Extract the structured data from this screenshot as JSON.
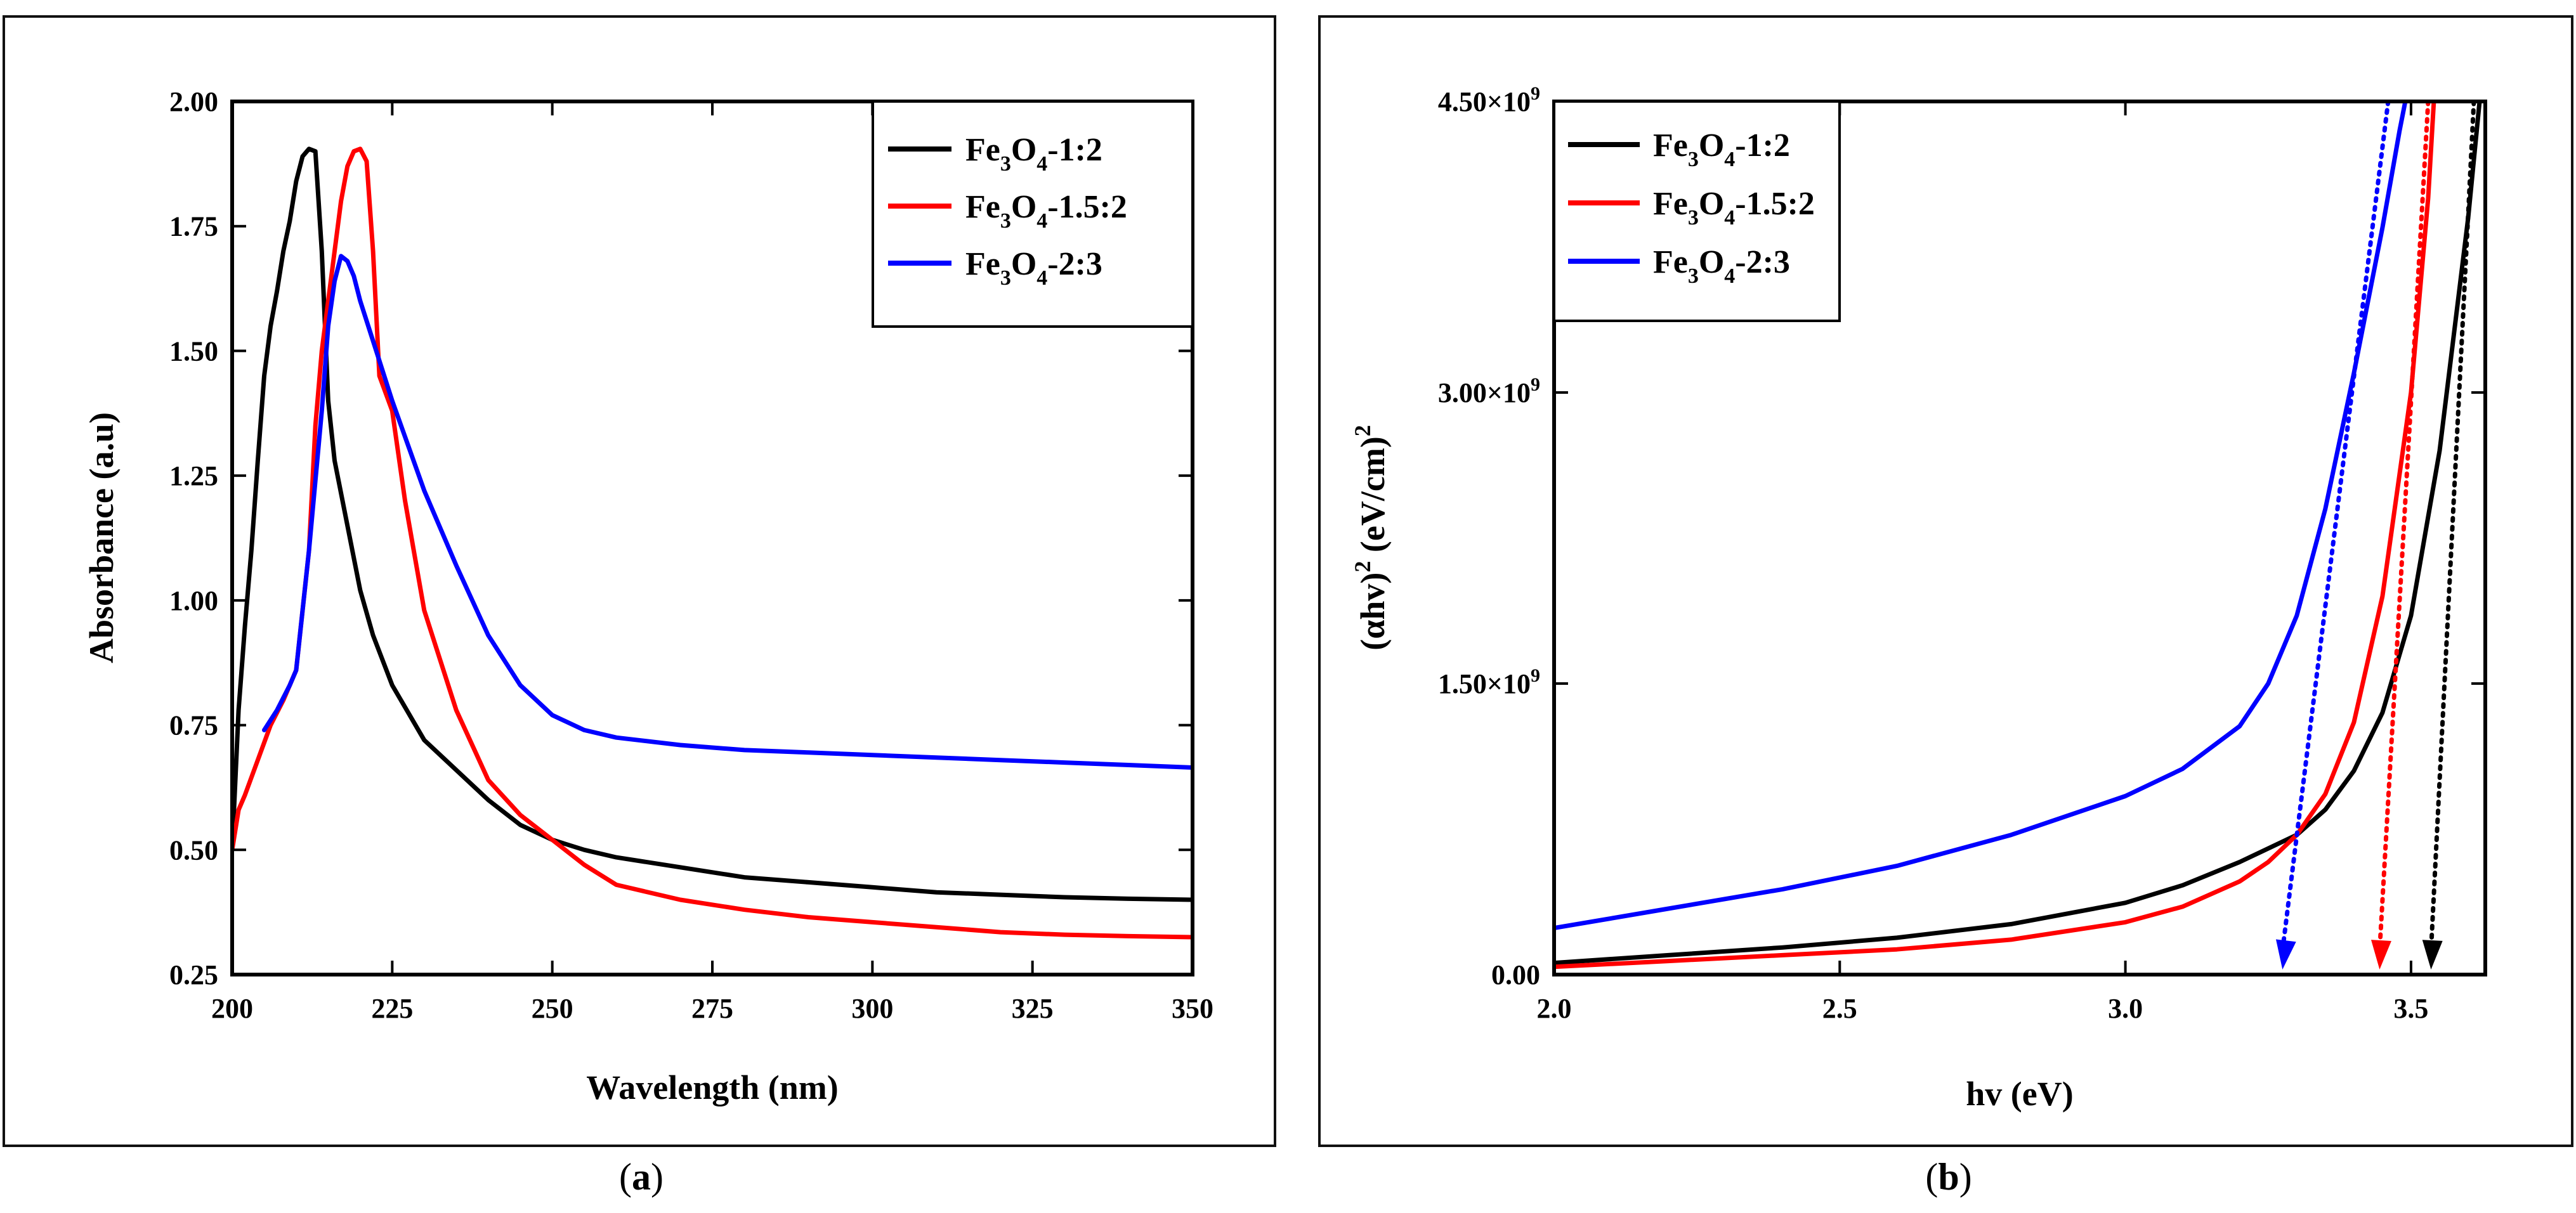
{
  "panels": [
    {
      "caption": {
        "open": "(",
        "letter": "a",
        "close": ")"
      },
      "chart_data": {
        "type": "line",
        "title": "",
        "xlabel": "Wavelength (nm)",
        "ylabel": "Absorbance (a.u)",
        "xlim": [
          200,
          350
        ],
        "ylim": [
          0.25,
          2.0
        ],
        "xticks": [
          200,
          225,
          250,
          275,
          300,
          325,
          350
        ],
        "xtick_labels": [
          "200",
          "225",
          "250",
          "275",
          "300",
          "325",
          "350"
        ],
        "yticks": [
          0.25,
          0.5,
          0.75,
          1.0,
          1.25,
          1.5,
          1.75,
          2.0
        ],
        "ytick_labels": [
          "0.25",
          "0.50",
          "0.75",
          "1.00",
          "1.25",
          "1.50",
          "1.75",
          "2.00"
        ],
        "grid": false,
        "legend_position": "top-right",
        "series": [
          {
            "name": "Fe3O4-1:2",
            "legend_base": "Fe",
            "legend_sub1": "3",
            "legend_mid": "O",
            "legend_sub2": "4",
            "legend_tail": "-1:2",
            "color": "#000000",
            "x": [
              200,
              201,
              202,
              203,
              204,
              205,
              206,
              207,
              208,
              209,
              210,
              211,
              212,
              213,
              214,
              215,
              216,
              218,
              220,
              222,
              225,
              230,
              235,
              240,
              245,
              250,
              255,
              260,
              270,
              280,
              290,
              300,
              310,
              320,
              330,
              340,
              350
            ],
            "y": [
              0.5,
              0.78,
              0.95,
              1.1,
              1.28,
              1.45,
              1.55,
              1.62,
              1.7,
              1.76,
              1.84,
              1.89,
              1.905,
              1.9,
              1.7,
              1.4,
              1.28,
              1.15,
              1.02,
              0.93,
              0.83,
              0.72,
              0.66,
              0.6,
              0.55,
              0.52,
              0.5,
              0.485,
              0.465,
              0.445,
              0.435,
              0.425,
              0.415,
              0.41,
              0.405,
              0.402,
              0.4
            ]
          },
          {
            "name": "Fe3O4-1.5:2",
            "legend_base": "Fe",
            "legend_sub1": "3",
            "legend_mid": "O",
            "legend_sub2": "4",
            "legend_tail": "-1.5:2",
            "color": "#ff0000",
            "x": [
              200,
              201,
              202,
              204,
              206,
              208,
              210,
              212,
              213,
              214,
              215,
              216,
              217,
              218,
              219,
              220,
              221,
              222,
              223,
              225,
              227,
              230,
              235,
              240,
              245,
              250,
              255,
              260,
              270,
              280,
              290,
              300,
              310,
              320,
              330,
              340,
              350
            ],
            "y": [
              0.5,
              0.58,
              0.61,
              0.68,
              0.75,
              0.8,
              0.86,
              1.1,
              1.35,
              1.5,
              1.6,
              1.7,
              1.8,
              1.87,
              1.9,
              1.905,
              1.88,
              1.7,
              1.45,
              1.38,
              1.2,
              0.98,
              0.78,
              0.64,
              0.57,
              0.52,
              0.47,
              0.43,
              0.4,
              0.38,
              0.365,
              0.355,
              0.345,
              0.335,
              0.33,
              0.327,
              0.325
            ]
          },
          {
            "name": "Fe3O4-2:3",
            "legend_base": "Fe",
            "legend_sub1": "3",
            "legend_mid": "O",
            "legend_sub2": "4",
            "legend_tail": "-2:3",
            "color": "#0000ff",
            "x": [
              205,
              207,
              209,
              210,
              212,
              214,
              215,
              216,
              217,
              218,
              219,
              220,
              222,
              225,
              230,
              235,
              240,
              245,
              250,
              255,
              260,
              270,
              280,
              290,
              300,
              310,
              320,
              330,
              340,
              350
            ],
            "y": [
              0.74,
              0.78,
              0.83,
              0.86,
              1.1,
              1.38,
              1.55,
              1.64,
              1.69,
              1.68,
              1.65,
              1.6,
              1.52,
              1.4,
              1.22,
              1.07,
              0.93,
              0.83,
              0.77,
              0.74,
              0.725,
              0.71,
              0.7,
              0.695,
              0.69,
              0.685,
              0.68,
              0.675,
              0.67,
              0.665
            ]
          }
        ]
      }
    },
    {
      "caption": {
        "open": "(",
        "letter": "b",
        "close": ")"
      },
      "chart_data": {
        "type": "line",
        "title": "",
        "xlabel": "hv (eV)",
        "ylabel_part1": "(αhv)",
        "ylabel_sup1": "2",
        "ylabel_part2": " (eV/cm)",
        "ylabel_sup2": "2",
        "ylabel": "(αhv)2 (eV/cm)2",
        "xlim": [
          2.0,
          3.63
        ],
        "ylim": [
          0,
          4500000000.0
        ],
        "xticks": [
          2.0,
          2.5,
          3.0,
          3.5
        ],
        "xtick_labels": [
          "2.0",
          "2.5",
          "3.0",
          "3.5"
        ],
        "yticks": [
          0,
          1500000000.0,
          3000000000.0,
          4500000000.0
        ],
        "ytick_labels": [
          {
            "base": "0.00",
            "sup": ""
          },
          {
            "base": "1.50×10",
            "sup": "9"
          },
          {
            "base": "3.00×10",
            "sup": "9"
          },
          {
            "base": "4.50×10",
            "sup": "9"
          }
        ],
        "grid": false,
        "legend_position": "top-left",
        "series": [
          {
            "name": "Fe3O4-1:2",
            "legend_base": "Fe",
            "legend_sub1": "3",
            "legend_mid": "O",
            "legend_sub2": "4",
            "legend_tail": "-1:2",
            "color": "#000000",
            "x": [
              2.0,
              2.2,
              2.4,
              2.6,
              2.8,
              3.0,
              3.1,
              3.2,
              3.3,
              3.35,
              3.4,
              3.45,
              3.5,
              3.55,
              3.6,
              3.62
            ],
            "y": [
              60000000.0,
              100000000.0,
              140000000.0,
              190000000.0,
              260000000.0,
              370000000.0,
              460000000.0,
              580000000.0,
              720000000.0,
              850000000.0,
              1050000000.0,
              1350000000.0,
              1850000000.0,
              2700000000.0,
              3900000000.0,
              4500000000.0
            ],
            "extrapolation": {
              "x": [
                3.61,
                3.535
              ],
              "y": [
                4500000000.0,
                0
              ]
            }
          },
          {
            "name": "Fe3O4-1.5:2",
            "legend_base": "Fe",
            "legend_sub1": "3",
            "legend_mid": "O",
            "legend_sub2": "4",
            "legend_tail": "-1.5:2",
            "color": "#ff0000",
            "x": [
              2.0,
              2.2,
              2.4,
              2.6,
              2.8,
              3.0,
              3.1,
              3.2,
              3.25,
              3.3,
              3.35,
              3.4,
              3.45,
              3.5,
              3.53,
              3.54
            ],
            "y": [
              40000000.0,
              70000000.0,
              100000000.0,
              130000000.0,
              180000000.0,
              270000000.0,
              350000000.0,
              480000000.0,
              580000000.0,
              720000000.0,
              930000000.0,
              1300000000.0,
              1950000000.0,
              3000000000.0,
              4000000000.0,
              4500000000.0
            ],
            "extrapolation": {
              "x": [
                3.53,
                3.445
              ],
              "y": [
                4500000000.0,
                0
              ]
            }
          },
          {
            "name": "Fe3O4-2:3",
            "legend_base": "Fe",
            "legend_sub1": "3",
            "legend_mid": "O",
            "legend_sub2": "4",
            "legend_tail": "-2:3",
            "color": "#0000ff",
            "x": [
              2.0,
              2.2,
              2.4,
              2.6,
              2.8,
              3.0,
              3.1,
              3.2,
              3.25,
              3.3,
              3.35,
              3.4,
              3.45,
              3.48,
              3.49
            ],
            "y": [
              240000000.0,
              340000000.0,
              440000000.0,
              560000000.0,
              720000000.0,
              920000000.0,
              1060000000.0,
              1280000000.0,
              1500000000.0,
              1850000000.0,
              2400000000.0,
              3100000000.0,
              3850000000.0,
              4350000000.0,
              4500000000.0
            ],
            "extrapolation": {
              "x": [
                3.46,
                3.275
              ],
              "y": [
                4500000000.0,
                0
              ]
            }
          }
        ]
      }
    }
  ]
}
